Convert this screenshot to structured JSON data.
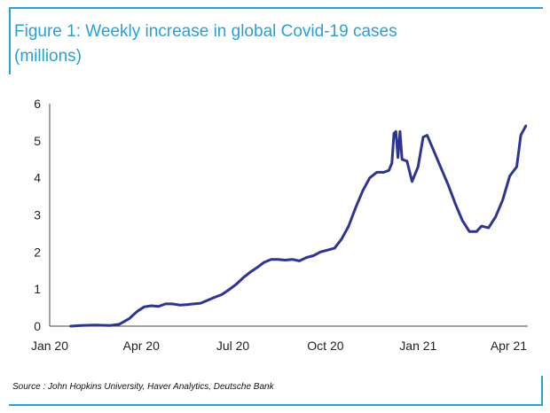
{
  "chart_data": {
    "type": "line",
    "title": "Figure 1: Weekly increase in global Covid-19 cases (millions)",
    "title_lines": [
      "Figure 1: Weekly increase in global Covid-19 cases",
      "(millions)"
    ],
    "xlabel": "",
    "ylabel": "",
    "ylim": [
      0,
      6
    ],
    "yticks": [
      0,
      1,
      2,
      3,
      4,
      5,
      6
    ],
    "xlim": [
      "2020-01-01",
      "2021-04-20"
    ],
    "xticks": [
      {
        "label": "Jan 20",
        "date": "2020-01-01"
      },
      {
        "label": "Apr 20",
        "date": "2020-04-01"
      },
      {
        "label": "Jul 20",
        "date": "2020-07-01"
      },
      {
        "label": "Oct 20",
        "date": "2020-10-01"
      },
      {
        "label": "Jan 21",
        "date": "2021-01-01"
      },
      {
        "label": "Apr 21",
        "date": "2021-04-01"
      }
    ],
    "grid": false,
    "line_color": "#2d3590",
    "series": [
      {
        "name": "",
        "points": [
          [
            "2020-01-22",
            0.0
          ],
          [
            "2020-02-01",
            0.02
          ],
          [
            "2020-02-15",
            0.03
          ],
          [
            "2020-03-01",
            0.02
          ],
          [
            "2020-03-10",
            0.05
          ],
          [
            "2020-03-20",
            0.2
          ],
          [
            "2020-03-28",
            0.4
          ],
          [
            "2020-04-04",
            0.52
          ],
          [
            "2020-04-11",
            0.55
          ],
          [
            "2020-04-18",
            0.53
          ],
          [
            "2020-04-25",
            0.6
          ],
          [
            "2020-05-02",
            0.6
          ],
          [
            "2020-05-09",
            0.57
          ],
          [
            "2020-05-16",
            0.58
          ],
          [
            "2020-05-23",
            0.6
          ],
          [
            "2020-05-30",
            0.62
          ],
          [
            "2020-06-06",
            0.7
          ],
          [
            "2020-06-13",
            0.78
          ],
          [
            "2020-06-20",
            0.85
          ],
          [
            "2020-06-27",
            0.98
          ],
          [
            "2020-07-04",
            1.12
          ],
          [
            "2020-07-11",
            1.3
          ],
          [
            "2020-07-18",
            1.45
          ],
          [
            "2020-07-25",
            1.58
          ],
          [
            "2020-08-01",
            1.72
          ],
          [
            "2020-08-08",
            1.8
          ],
          [
            "2020-08-15",
            1.8
          ],
          [
            "2020-08-22",
            1.78
          ],
          [
            "2020-08-29",
            1.8
          ],
          [
            "2020-09-05",
            1.76
          ],
          [
            "2020-09-12",
            1.85
          ],
          [
            "2020-09-19",
            1.9
          ],
          [
            "2020-09-26",
            2.0
          ],
          [
            "2020-10-03",
            2.05
          ],
          [
            "2020-10-10",
            2.1
          ],
          [
            "2020-10-17",
            2.35
          ],
          [
            "2020-10-24",
            2.7
          ],
          [
            "2020-10-31",
            3.2
          ],
          [
            "2020-11-07",
            3.65
          ],
          [
            "2020-11-14",
            4.0
          ],
          [
            "2020-11-21",
            4.15
          ],
          [
            "2020-11-28",
            4.15
          ],
          [
            "2020-12-03",
            4.2
          ],
          [
            "2020-12-06",
            4.4
          ],
          [
            "2020-12-08",
            5.2
          ],
          [
            "2020-12-10",
            5.25
          ],
          [
            "2020-12-12",
            4.55
          ],
          [
            "2020-12-14",
            5.25
          ],
          [
            "2020-12-16",
            4.5
          ],
          [
            "2020-12-21",
            4.45
          ],
          [
            "2020-12-26",
            3.9
          ],
          [
            "2021-01-01",
            4.3
          ],
          [
            "2021-01-06",
            5.1
          ],
          [
            "2021-01-10",
            5.15
          ],
          [
            "2021-01-17",
            4.7
          ],
          [
            "2021-01-24",
            4.25
          ],
          [
            "2021-01-31",
            3.8
          ],
          [
            "2021-02-07",
            3.3
          ],
          [
            "2021-02-14",
            2.85
          ],
          [
            "2021-02-21",
            2.55
          ],
          [
            "2021-02-28",
            2.55
          ],
          [
            "2021-03-05",
            2.7
          ],
          [
            "2021-03-12",
            2.65
          ],
          [
            "2021-03-19",
            2.95
          ],
          [
            "2021-03-26",
            3.4
          ],
          [
            "2021-04-02",
            4.05
          ],
          [
            "2021-04-09",
            4.3
          ],
          [
            "2021-04-13",
            5.15
          ],
          [
            "2021-04-18",
            5.4
          ]
        ]
      }
    ]
  },
  "source": "Source : John Hopkins University, Haver Analytics, Deutsche Bank"
}
